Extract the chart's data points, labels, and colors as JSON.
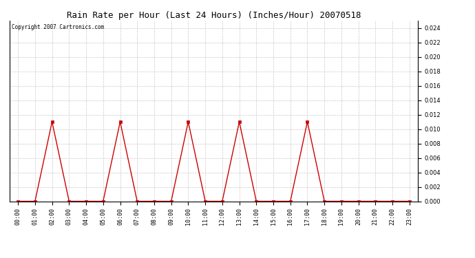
{
  "title": "Rain Rate per Hour (Last 24 Hours) (Inches/Hour) 20070518",
  "copyright_text": "Copyright 2007 Cartronics.com",
  "hours": [
    0,
    1,
    2,
    3,
    4,
    5,
    6,
    7,
    8,
    9,
    10,
    11,
    12,
    13,
    14,
    15,
    16,
    17,
    18,
    19,
    20,
    21,
    22,
    23
  ],
  "values": [
    0.0,
    0.0,
    0.011,
    0.0,
    0.0,
    0.0,
    0.011,
    0.0,
    0.0,
    0.0,
    0.011,
    0.0,
    0.0,
    0.011,
    0.0,
    0.0,
    0.0,
    0.011,
    0.0,
    0.0,
    0.0,
    0.0,
    0.0,
    0.0
  ],
  "line_color": "#cc0000",
  "marker_color": "#cc0000",
  "background_color": "#ffffff",
  "grid_color": "#c8c8c8",
  "ylim": [
    0,
    0.025
  ],
  "yticks": [
    0.0,
    0.002,
    0.004,
    0.006,
    0.008,
    0.01,
    0.012,
    0.014,
    0.016,
    0.018,
    0.02,
    0.022,
    0.024
  ],
  "title_fontsize": 9,
  "tick_fontsize": 6,
  "copyright_fontsize": 5.5
}
